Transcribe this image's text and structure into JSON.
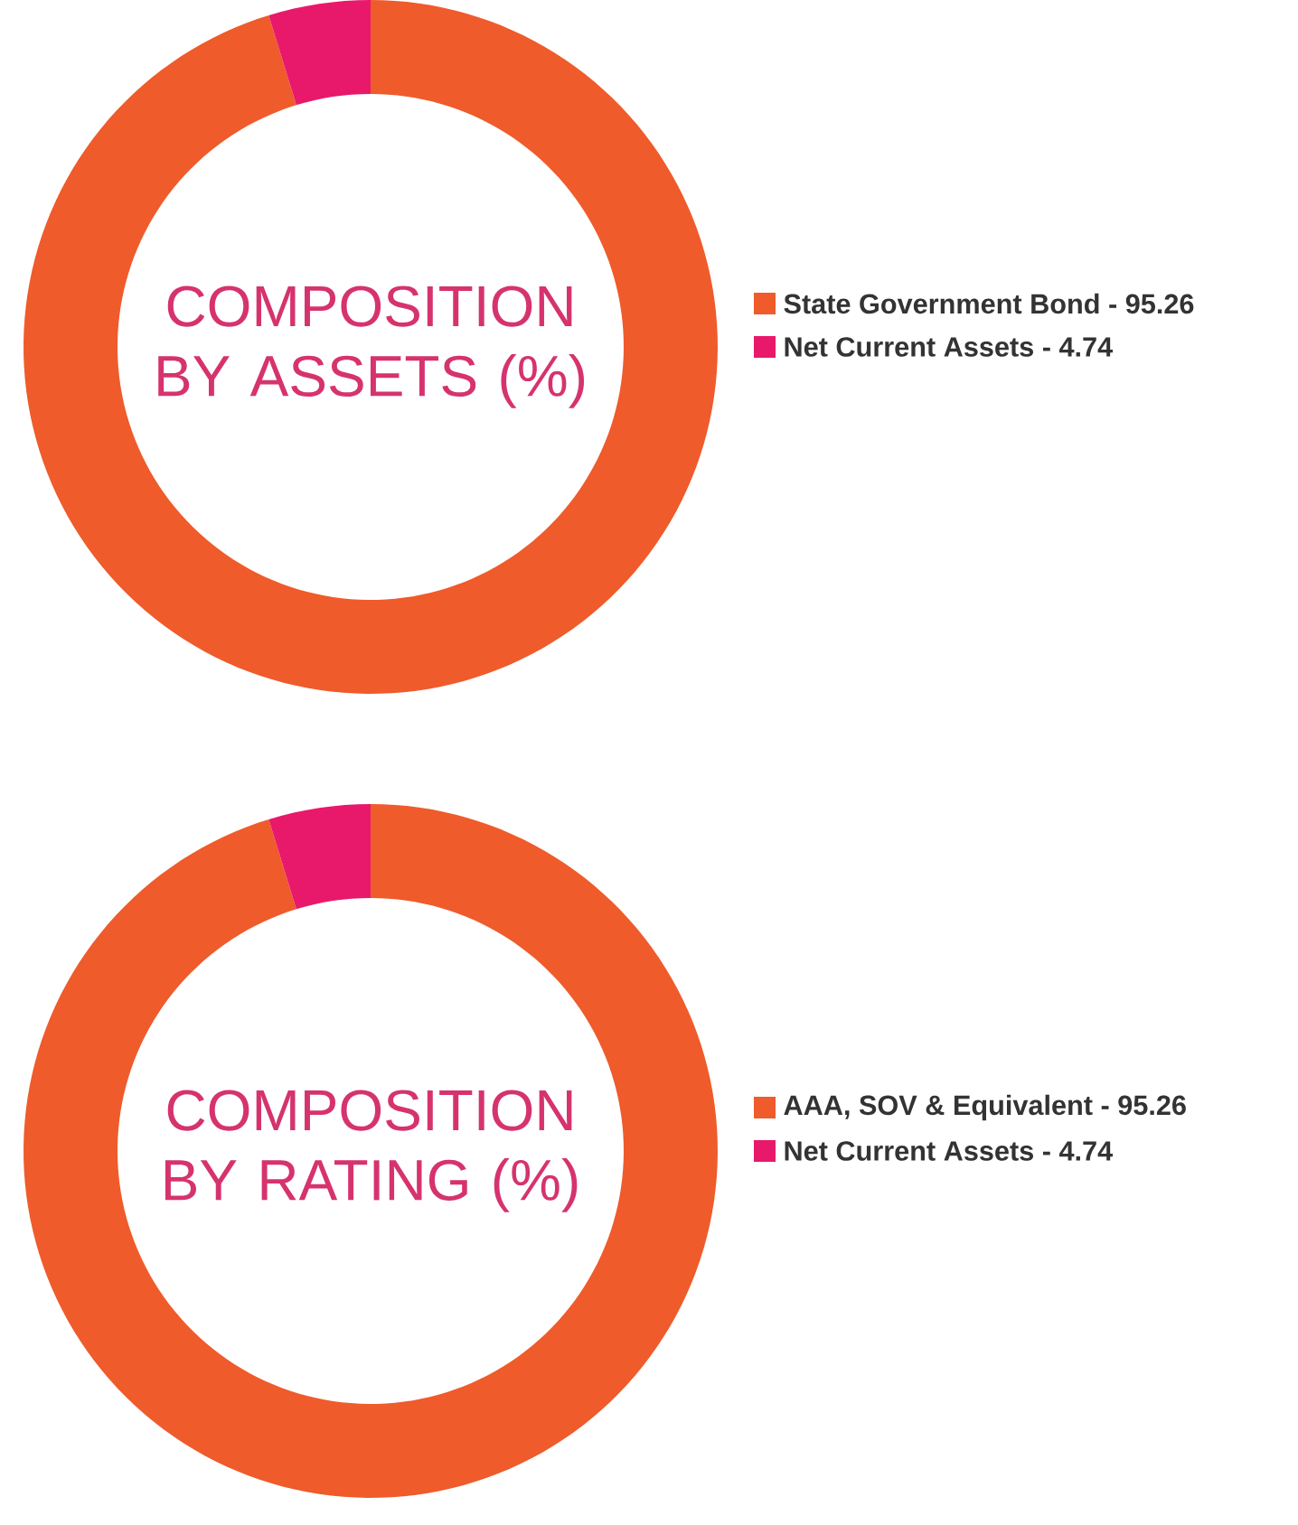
{
  "chart_data": [
    {
      "type": "donut",
      "title": "COMPOSITION BY ASSETS (%)",
      "categories": [
        "State Government Bond - 95.26",
        "Net Current Assets - 4.74"
      ],
      "values": [
        95.26,
        4.74
      ],
      "colors": [
        "#ef5b2b",
        "#e8196a"
      ],
      "legend": "right"
    },
    {
      "type": "donut",
      "title": "COMPOSITION BY RATING (%)",
      "categories": [
        "AAA, SOV & Equivalent - 95.26",
        "Net Current Assets - 4.74"
      ],
      "values": [
        95.26,
        4.74
      ],
      "colors": [
        "#ef5b2b",
        "#e8196a"
      ],
      "legend": "right"
    }
  ]
}
